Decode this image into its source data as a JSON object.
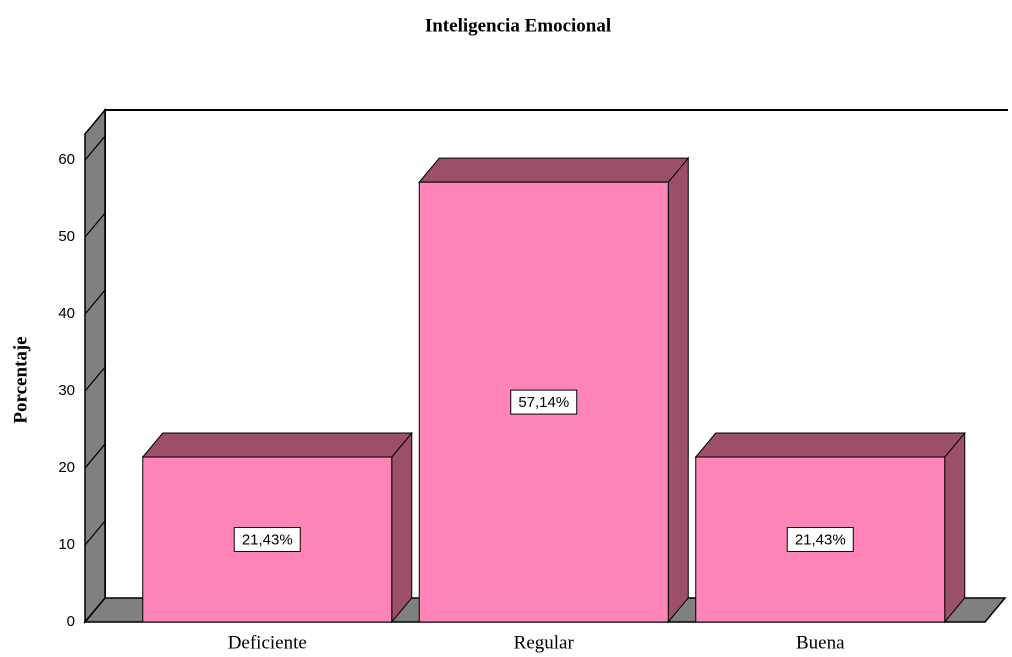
{
  "chart_data": {
    "type": "bar3d",
    "title": "Inteligencia Emocional",
    "y_label": "Porcentaje",
    "categories": [
      "Deficiente",
      "Regular",
      "Buena"
    ],
    "values": [
      21.43,
      57.14,
      21.43
    ],
    "value_labels": [
      "21,43%",
      "57,14%",
      "21,43%"
    ],
    "color": "#ff85b8",
    "side_color": "#9b4f68",
    "ylim": [
      0,
      63.4
    ],
    "yticks": [
      0,
      10,
      20,
      30,
      40,
      50,
      60
    ]
  }
}
